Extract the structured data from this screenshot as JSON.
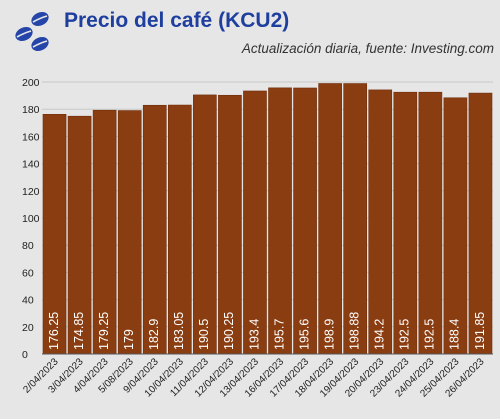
{
  "header": {
    "title": "Precio del café (KCU2)",
    "subtitle": "Actualización diaria, fuente: Investing.com",
    "logo_icon": "coffee-beans-icon"
  },
  "colors": {
    "bar": "#8b3d12",
    "bar_stroke": "#6e2f0c",
    "title": "#1f3f9f",
    "logo": "#2546a8",
    "background": "#e6e6e6",
    "grid": "#c8c8c8"
  },
  "chart_data": {
    "type": "bar",
    "categories": [
      "2/04/2023",
      "3/04/2023",
      "4/04/2023",
      "5/08/2023",
      "9/04/2023",
      "10/04/2023",
      "11/04/2023",
      "12/04/2023",
      "13/04/2023",
      "16/04/2023",
      "17/04/2023",
      "18/04/2023",
      "19/04/2023",
      "20/04/2023",
      "23/04/2023",
      "24/04/2023",
      "25/04/2023",
      "26/04/2023"
    ],
    "values": [
      176.25,
      174.85,
      179.25,
      179,
      182.9,
      183.05,
      190.5,
      190.25,
      193.4,
      195.7,
      195.6,
      198.9,
      198.88,
      194.2,
      192.5,
      192.5,
      188.4,
      191.85
    ],
    "value_labels": [
      "176.25",
      "174.85",
      "179.25",
      "179",
      "182.9",
      "183.05",
      "190.5",
      "190.25",
      "193.4",
      "195.7",
      "195.6",
      "198.9",
      "198.88",
      "194.2",
      "192.5",
      "192.5",
      "188.4",
      "191.85"
    ],
    "title": "Precio del café (KCU2)",
    "xlabel": "",
    "ylabel": "",
    "ylim": [
      0,
      200
    ],
    "yticks": [
      0,
      20,
      40,
      60,
      80,
      100,
      120,
      140,
      160,
      180,
      200
    ],
    "grid": true,
    "legend": "none"
  }
}
